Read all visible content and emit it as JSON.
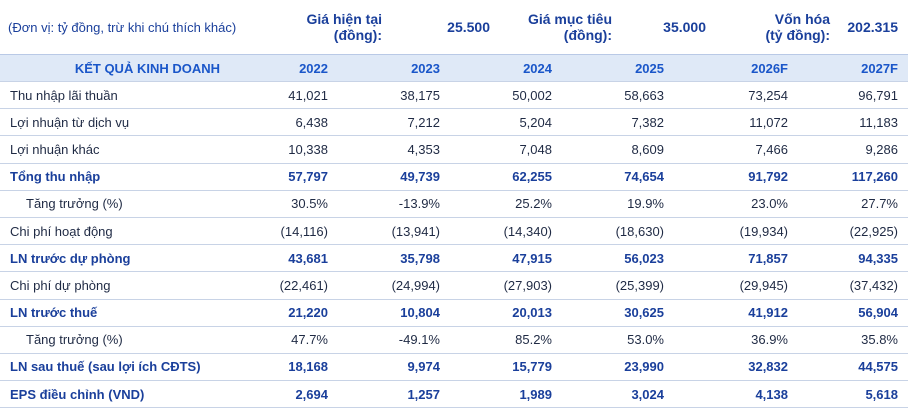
{
  "header": {
    "unit_note": "(Đơn vị: tỷ đồng, trừ khi chú thích khác)",
    "current_price_label_1": "Giá hiện tại",
    "current_price_label_2": "(đồng):",
    "current_price_value": "25.500",
    "target_price_label_1": "Giá mục tiêu",
    "target_price_label_2": "(đồng):",
    "target_price_value": "35.000",
    "market_cap_label_1": "Vốn hóa",
    "market_cap_label_2": "(tỷ đồng):",
    "market_cap_value": "202.315"
  },
  "section": {
    "title": "KẾT QUẢ KINH DOANH",
    "years": [
      "2022",
      "2023",
      "2024",
      "2025",
      "2026F",
      "2027F"
    ]
  },
  "rows": [
    {
      "label": "Thu nhập lãi thuần",
      "values": [
        "41,021",
        "38,175",
        "50,002",
        "58,663",
        "73,254",
        "96,791"
      ]
    },
    {
      "label": "Lợi nhuận từ dịch vụ",
      "values": [
        "6,438",
        "7,212",
        "5,204",
        "7,382",
        "11,072",
        "11,183"
      ]
    },
    {
      "label": "Lợi nhuận khác",
      "values": [
        "10,338",
        "4,353",
        "7,048",
        "8,609",
        "7,466",
        "9,286"
      ]
    },
    {
      "label": "Tổng thu nhập",
      "values": [
        "57,797",
        "49,739",
        "62,255",
        "74,654",
        "91,792",
        "117,260"
      ]
    },
    {
      "label": "Tăng trưởng (%)",
      "values": [
        "30.5%",
        "-13.9%",
        "25.2%",
        "19.9%",
        "23.0%",
        "27.7%"
      ]
    },
    {
      "label": "Chi phí hoạt động",
      "values": [
        "(14,116)",
        "(13,941)",
        "(14,340)",
        "(18,630)",
        "(19,934)",
        "(22,925)"
      ]
    },
    {
      "label": "LN trước dự phòng",
      "values": [
        "43,681",
        "35,798",
        "47,915",
        "56,023",
        "71,857",
        "94,335"
      ]
    },
    {
      "label": "Chi phí dự phòng",
      "values": [
        "(22,461)",
        "(24,994)",
        "(27,903)",
        "(25,399)",
        "(29,945)",
        "(37,432)"
      ]
    },
    {
      "label": "LN trước thuế",
      "values": [
        "21,220",
        "10,804",
        "20,013",
        "30,625",
        "41,912",
        "56,904"
      ]
    },
    {
      "label": "Tăng trưởng (%)",
      "values": [
        "47.7%",
        "-49.1%",
        "85.2%",
        "53.0%",
        "36.9%",
        "35.8%"
      ]
    },
    {
      "label": "LN sau thuế (sau lợi ích CĐTS)",
      "values": [
        "18,168",
        "9,974",
        "15,779",
        "23,990",
        "32,832",
        "44,575"
      ]
    },
    {
      "label": "EPS điều chỉnh (VND)",
      "values": [
        "2,694",
        "1,257",
        "1,989",
        "3,024",
        "4,138",
        "5,618"
      ]
    }
  ]
}
